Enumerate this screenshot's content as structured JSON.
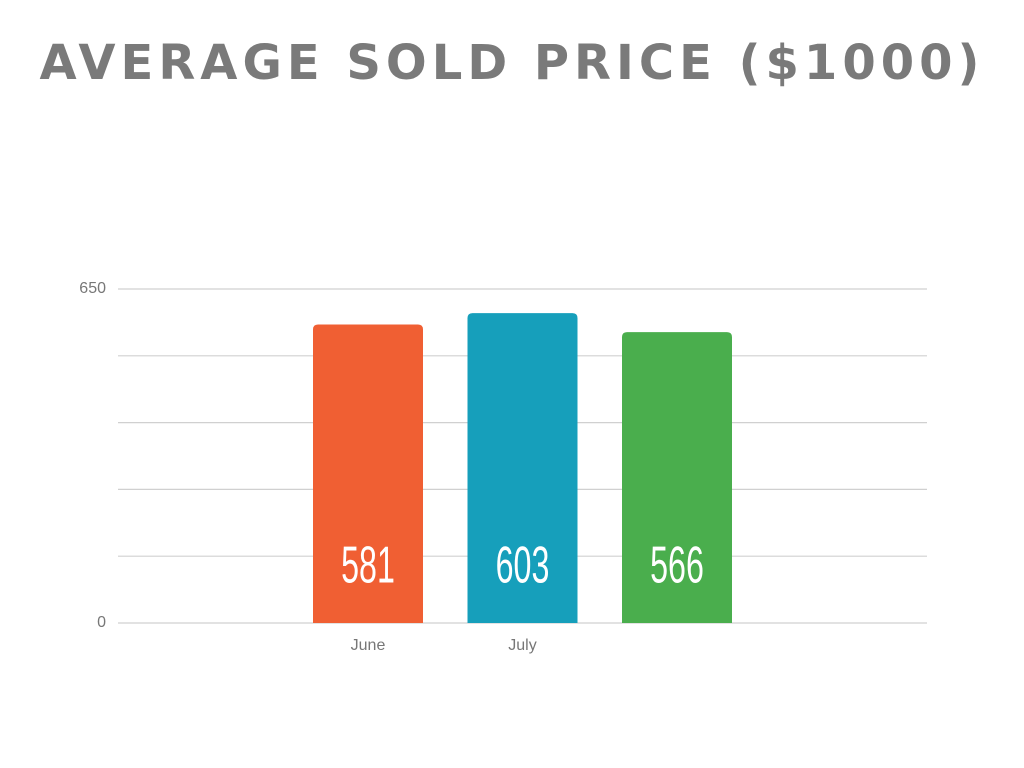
{
  "chart_data": {
    "type": "bar",
    "title": "AVERAGE SOLD PRICE ($1000)",
    "categories": [
      "June",
      "July",
      null
    ],
    "values": [
      581,
      603,
      566
    ],
    "colors": [
      "#f05f33",
      "#169fbb",
      "#4aae4d"
    ],
    "ylim": [
      0,
      650
    ],
    "yticks": [
      0,
      650
    ],
    "grid_lines": [
      0,
      130,
      260,
      390,
      520,
      650
    ],
    "grid": true
  }
}
